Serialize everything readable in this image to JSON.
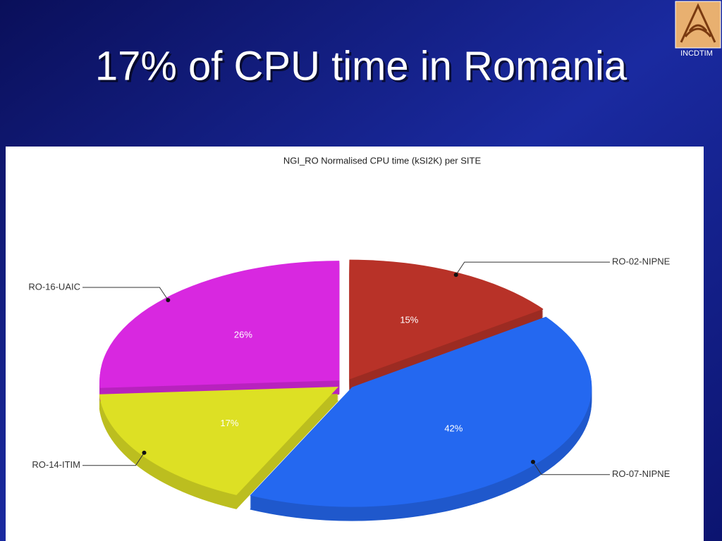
{
  "slide_title": "17% of CPU time in Romania",
  "logo": "INCDTIM",
  "chart_data": {
    "type": "pie",
    "title": "NGI_RO Normalised CPU time (kSI2K) per SITE",
    "categories": [
      "RO-02-NIPNE",
      "RO-07-NIPNE",
      "RO-14-ITIM",
      "RO-16-UAIC"
    ],
    "values": [
      15,
      42,
      17,
      26
    ],
    "value_labels": [
      "15%",
      "42%",
      "17%",
      "26%"
    ],
    "colors": [
      "#b83228",
      "#2468f0",
      "#dde024",
      "#d828e0"
    ]
  }
}
